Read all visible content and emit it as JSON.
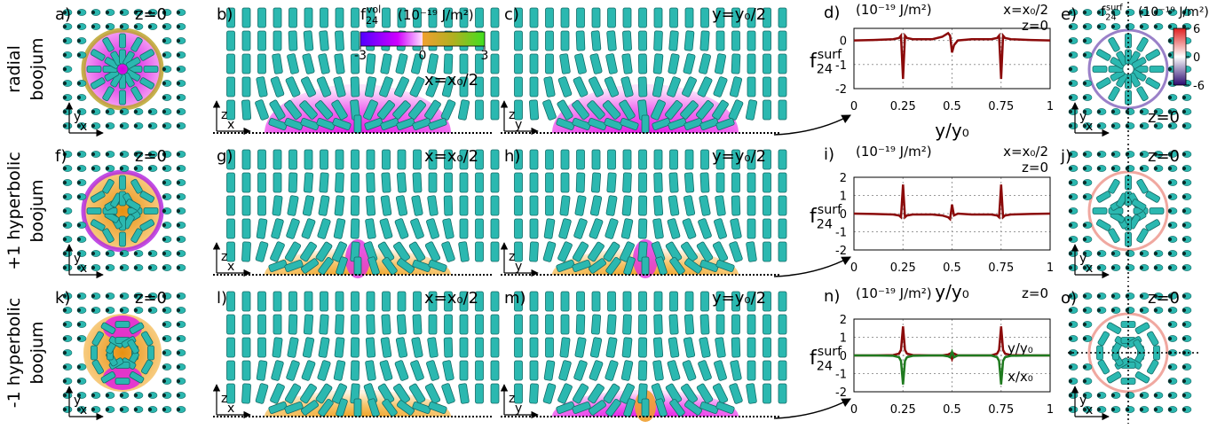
{
  "rows": [
    {
      "label": [
        "radial",
        "boojum"
      ],
      "top": {
        "letter": "a)",
        "plane": "z=0",
        "axes": [
          "y",
          "x"
        ]
      },
      "side_x": {
        "letter": "b)",
        "plane": "x=x₀/2",
        "axes": [
          "z",
          "x"
        ]
      },
      "side_y": {
        "letter": "c)",
        "plane": "y=y₀/2",
        "axes": [
          "z",
          "y"
        ]
      },
      "surface": {
        "letter": "e)",
        "plane": "z=0",
        "axes": [
          "y",
          "x"
        ]
      }
    },
    {
      "label": [
        "+1 hyperbolic",
        "boojum"
      ],
      "top": {
        "letter": "f)",
        "plane": "z=0",
        "axes": [
          "y",
          "x"
        ]
      },
      "side_x": {
        "letter": "g)",
        "plane": "x=x₀/2",
        "axes": [
          "z",
          "x"
        ]
      },
      "side_y": {
        "letter": "h)",
        "plane": "y=y₀/2",
        "axes": [
          "z",
          "y"
        ]
      },
      "surface": {
        "letter": "j)",
        "plane": "z=0",
        "axes": [
          "y",
          "x"
        ]
      }
    },
    {
      "label": [
        "-1 hyperbolic",
        "boojum"
      ],
      "top": {
        "letter": "k)",
        "plane": "z=0",
        "axes": [
          "y",
          "x"
        ]
      },
      "side_x": {
        "letter": "l)",
        "plane": "x=x₀/2",
        "axes": [
          "z",
          "x"
        ]
      },
      "side_y": {
        "letter": "m)",
        "plane": "y=y₀/2",
        "axes": [
          "z",
          "y"
        ]
      },
      "surface": {
        "letter": "o)",
        "plane": "z=0",
        "axes": [
          "y",
          "x"
        ]
      }
    }
  ],
  "colorbars": [
    {
      "label": {
        "main": "f",
        "sub": "24",
        "sup": "vol"
      },
      "units": "(10⁻¹⁹ J/m²)",
      "lim": [
        -3,
        3
      ],
      "ticks": [
        -3,
        0,
        3
      ]
    },
    {
      "label": {
        "main": "f",
        "sub": "24",
        "sup": "surf"
      },
      "units": "(10⁻¹⁹ J/m²)",
      "lim": [
        -6,
        6
      ],
      "ticks": [
        6,
        0,
        -6
      ]
    }
  ],
  "chart_data": [
    {
      "type": "line",
      "letter": "d)",
      "units": "(10⁻¹⁹ J/m²)",
      "ylabel": {
        "main": "f",
        "sub": "24",
        "sup": "surf"
      },
      "xlabel": "y/y₀",
      "annotations": [
        "x=x₀/2",
        "z=0"
      ],
      "x": [
        0,
        0.1,
        0.2,
        0.23,
        0.24,
        0.25,
        0.26,
        0.27,
        0.3,
        0.4,
        0.45,
        0.48,
        0.49,
        0.5,
        0.51,
        0.53,
        0.6,
        0.7,
        0.73,
        0.74,
        0.75,
        0.76,
        0.77,
        0.8,
        0.9,
        1
      ],
      "series": [
        {
          "color": "#8b0a0a",
          "values": [
            0,
            0.02,
            0.05,
            0.1,
            0.2,
            -1.6,
            0.2,
            0.1,
            0.05,
            0.05,
            0.15,
            0.3,
            0.2,
            -0.5,
            -0.2,
            0,
            0.05,
            0.05,
            0.1,
            0.2,
            -1.6,
            0.2,
            0.1,
            0.05,
            0.02,
            0
          ]
        }
      ],
      "xlim": [
        0,
        1
      ],
      "xticks": [
        0,
        0.25,
        0.5,
        0.75,
        1
      ],
      "ylim": [
        -2,
        0.5
      ],
      "yticks": [
        -2,
        -1,
        0
      ],
      "grid": true
    },
    {
      "type": "line",
      "letter": "i)",
      "units": "(10⁻¹⁹ J/m²)",
      "ylabel": {
        "main": "f",
        "sub": "24",
        "sup": "surf"
      },
      "xlabel": "y/y₀",
      "annotations": [
        "x=x₀/2",
        "z=0"
      ],
      "x": [
        0,
        0.1,
        0.2,
        0.23,
        0.24,
        0.25,
        0.26,
        0.27,
        0.3,
        0.4,
        0.45,
        0.48,
        0.49,
        0.5,
        0.51,
        0.53,
        0.6,
        0.7,
        0.73,
        0.74,
        0.75,
        0.76,
        0.77,
        0.8,
        0.9,
        1
      ],
      "series": [
        {
          "color": "#8b0a0a",
          "values": [
            0,
            -0.02,
            -0.05,
            -0.1,
            -0.2,
            1.6,
            -0.2,
            -0.1,
            -0.05,
            -0.05,
            -0.1,
            -0.2,
            -0.3,
            0.5,
            -0.1,
            0,
            -0.05,
            -0.05,
            -0.1,
            -0.2,
            1.6,
            -0.2,
            -0.1,
            -0.05,
            -0.02,
            0
          ]
        }
      ],
      "xlim": [
        0,
        1
      ],
      "xticks": [
        0,
        0.25,
        0.5,
        0.75,
        1
      ],
      "ylim": [
        -2,
        2
      ],
      "yticks": [
        -2,
        -1,
        0,
        1,
        2
      ],
      "grid": true
    },
    {
      "type": "line",
      "letter": "n)",
      "units": "(10⁻¹⁹ J/m²)",
      "ylabel": {
        "main": "f",
        "sub": "24",
        "sup": "surf"
      },
      "annotations": [
        "z=0"
      ],
      "x": [
        0,
        0.1,
        0.2,
        0.23,
        0.24,
        0.25,
        0.26,
        0.27,
        0.3,
        0.4,
        0.45,
        0.48,
        0.49,
        0.5,
        0.51,
        0.53,
        0.6,
        0.7,
        0.73,
        0.74,
        0.75,
        0.76,
        0.77,
        0.8,
        0.9,
        1
      ],
      "series": [
        {
          "name": "y/y₀",
          "color": "#8b0a0a",
          "values": [
            0,
            0,
            0.02,
            0.1,
            0.3,
            1.6,
            0.3,
            0.1,
            0.02,
            0,
            0,
            0.05,
            0.1,
            -0.2,
            0.1,
            0,
            0,
            0,
            0.1,
            0.3,
            1.6,
            0.3,
            0.1,
            0.02,
            0,
            0
          ]
        },
        {
          "name": "x/x₀",
          "color": "#1f7a1f",
          "values": [
            0,
            0,
            -0.02,
            -0.1,
            -0.3,
            -1.6,
            -0.3,
            -0.1,
            -0.02,
            0,
            0,
            -0.05,
            -0.1,
            0.2,
            -0.1,
            0,
            0,
            0,
            -0.1,
            -0.3,
            -1.6,
            -0.3,
            -0.1,
            -0.02,
            0,
            0
          ]
        }
      ],
      "xlim": [
        0,
        1
      ],
      "xticks": [
        0,
        0.25,
        0.5,
        0.75,
        1
      ],
      "ylim": [
        -2,
        2
      ],
      "yticks": [
        -2,
        -1,
        0,
        1,
        2
      ],
      "grid": true
    }
  ]
}
